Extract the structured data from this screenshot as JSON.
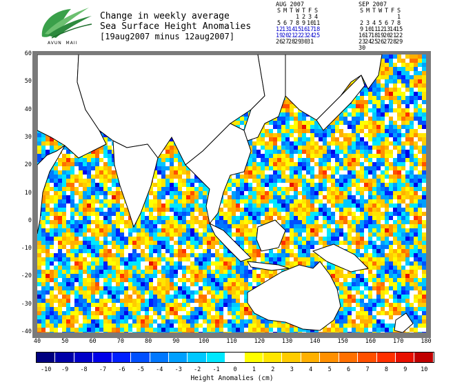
{
  "logo": {
    "text": "AVUN  MAII"
  },
  "title": {
    "line1": "Change in weekly average",
    "line2": "Sea Surface Height Anomalies",
    "line3": "[19aug2007 minus 12aug2007]"
  },
  "calendars": [
    {
      "month": "AUG 2007",
      "weekdays": [
        "S",
        "M",
        "T",
        "W",
        "T",
        "F",
        "S"
      ],
      "weeks": [
        [
          "",
          "",
          "",
          "1",
          "2",
          "3",
          "4"
        ],
        [
          "5",
          "6",
          "7",
          "8",
          "9",
          "10",
          "11"
        ],
        [
          "12",
          "13",
          "14",
          "15",
          "16",
          "17",
          "18"
        ],
        [
          "19",
          "20",
          "21",
          "22",
          "23",
          "24",
          "25"
        ],
        [
          "26",
          "27",
          "28",
          "29",
          "30",
          "31",
          ""
        ]
      ],
      "highlight_weeks": [
        2,
        3
      ]
    },
    {
      "month": "SEP 2007",
      "weekdays": [
        "S",
        "M",
        "T",
        "W",
        "T",
        "F",
        "S"
      ],
      "weeks": [
        [
          "",
          "",
          "",
          "",
          "",
          "",
          "1"
        ],
        [
          "2",
          "3",
          "4",
          "5",
          "6",
          "7",
          "8"
        ],
        [
          "9",
          "10",
          "11",
          "12",
          "13",
          "14",
          "15"
        ],
        [
          "16",
          "17",
          "18",
          "19",
          "20",
          "21",
          "22"
        ],
        [
          "23",
          "24",
          "25",
          "26",
          "27",
          "28",
          "29"
        ],
        [
          "30",
          "",
          "",
          "",
          "",
          "",
          ""
        ]
      ],
      "highlight_weeks": []
    }
  ],
  "map": {
    "lat_ticks": [
      "60",
      "50",
      "40",
      "30",
      "20",
      "10",
      "0",
      "-10",
      "-20",
      "-30",
      "-40"
    ],
    "lon_ticks": [
      "40",
      "50",
      "60",
      "70",
      "80",
      "90",
      "100",
      "110",
      "120",
      "130",
      "140",
      "150",
      "160",
      "170",
      "180"
    ],
    "lon_range": [
      40,
      180
    ],
    "lat_range": [
      -40,
      60
    ]
  },
  "colorbar": {
    "labels": [
      "-10",
      "-9",
      "-8",
      "-7",
      "-6",
      "-5",
      "-4",
      "-3",
      "-2",
      "-1",
      "0",
      "1",
      "2",
      "3",
      "4",
      "5",
      "6",
      "7",
      "8",
      "9",
      "10"
    ],
    "colors": [
      "#000080",
      "#0000a8",
      "#0000c8",
      "#0000e8",
      "#0020ff",
      "#0050ff",
      "#0078ff",
      "#00a0ff",
      "#00c8ff",
      "#00e8ff",
      "#ffffff",
      "#ffff00",
      "#ffe600",
      "#ffcc00",
      "#ffb000",
      "#ff9000",
      "#ff7000",
      "#ff5000",
      "#ff3000",
      "#e81000",
      "#c00000"
    ],
    "title": "Height Anomalies (cm)"
  }
}
